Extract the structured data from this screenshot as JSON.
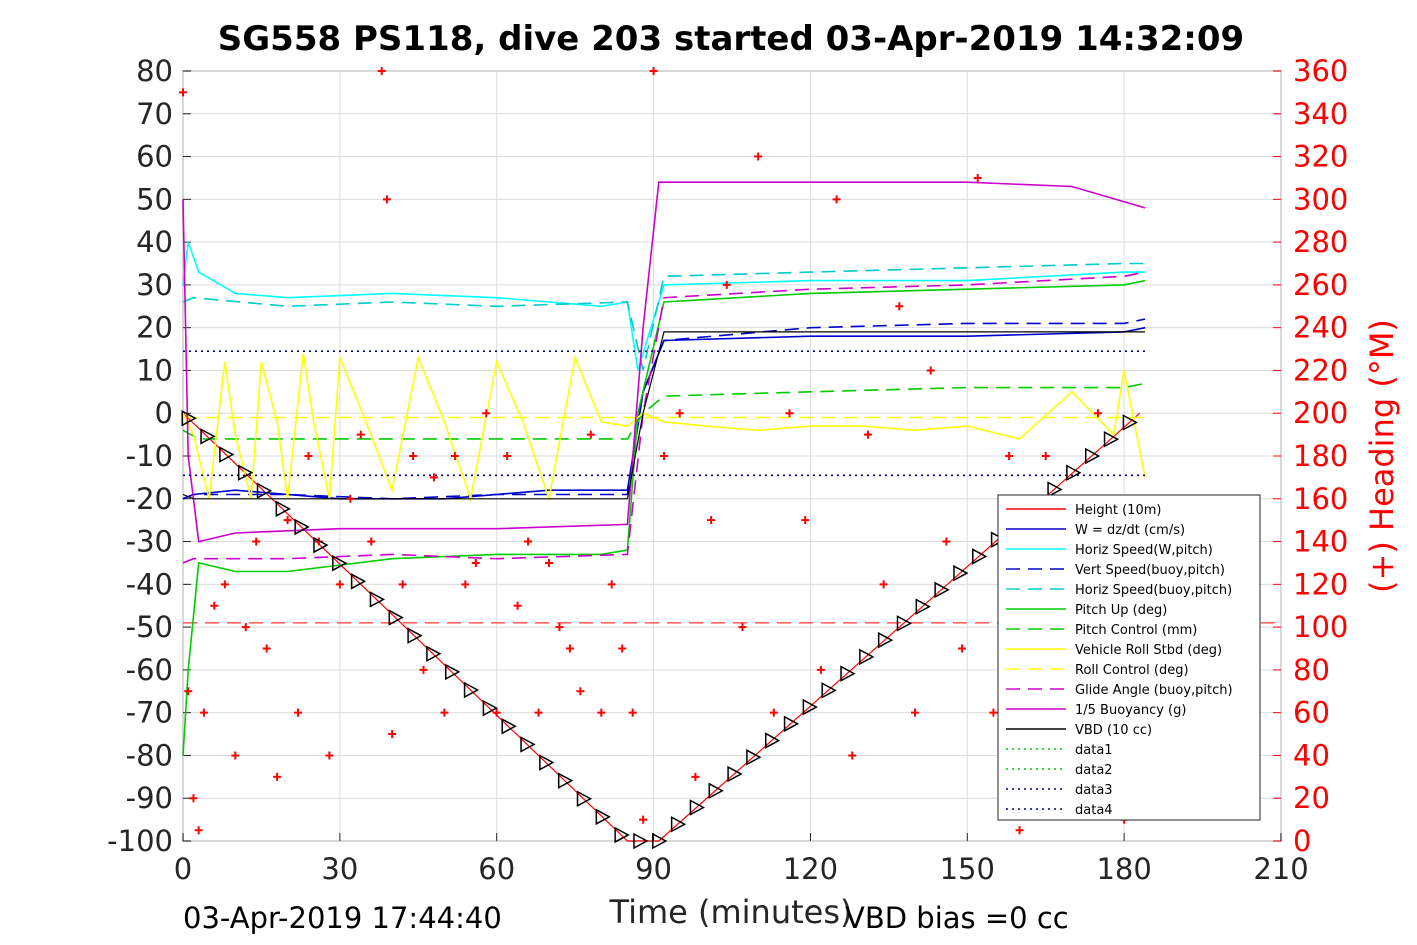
{
  "chart_data": {
    "type": "line",
    "title": "SG558 PS118, dive 203 started 03-Apr-2019 14:32:09",
    "xlabel": "Time (minutes)",
    "ylabel": "",
    "y2label": "(+) Heading (°M)",
    "xlim": [
      0,
      210
    ],
    "ylim": [
      -100,
      80
    ],
    "y2lim": [
      0,
      360
    ],
    "xticks": [
      "0",
      "30",
      "60",
      "90",
      "120",
      "150",
      "180",
      "210"
    ],
    "yticks": [
      "-100",
      "-90",
      "-80",
      "-70",
      "-60",
      "-50",
      "-40",
      "-30",
      "-20",
      "-10",
      "0",
      "10",
      "20",
      "30",
      "40",
      "50",
      "60",
      "70",
      "80"
    ],
    "y2ticks": [
      "0",
      "20",
      "40",
      "60",
      "80",
      "100",
      "120",
      "140",
      "160",
      "180",
      "200",
      "220",
      "240",
      "260",
      "280",
      "300",
      "320",
      "340",
      "360"
    ],
    "grid": true,
    "legend_position": "bottom-right",
    "footer_left": "03-Apr-2019 17:44:40",
    "footer_right": "VBD bias =0 cc",
    "colors": {
      "height": "#ff0000",
      "w": "#0000cc",
      "horiz_w": "#00ffff",
      "vert_buoy": "#0000cc",
      "horiz_buoy": "#00cccc",
      "pitch": "#00cc00",
      "pitch_ctl": "#00cc00",
      "roll": "#ffff00",
      "roll_ctl": "#ffff00",
      "glide": "#cc00cc",
      "buoyancy": "#cc00cc",
      "vbd": "#000000",
      "heading": "#ff0000"
    },
    "series": [
      {
        "key": "height",
        "name": "Height (10m)",
        "style": "solid",
        "x": [
          0,
          85,
          91,
          183
        ],
        "y": [
          0,
          -100,
          -100,
          0
        ]
      },
      {
        "key": "w",
        "name": "W = dz/dt (cm/s)",
        "style": "solid",
        "x": [
          0,
          2,
          10,
          30,
          50,
          70,
          85,
          88,
          92,
          120,
          150,
          180,
          184
        ],
        "y": [
          -20,
          -19,
          -18,
          -20,
          -20,
          -18,
          -18,
          5,
          17,
          18,
          18,
          19,
          20
        ]
      },
      {
        "key": "horiz_w",
        "name": "Horiz Speed(W,pitch)",
        "style": "solid",
        "x": [
          0,
          1,
          3,
          10,
          20,
          40,
          60,
          80,
          85,
          87,
          92,
          120,
          150,
          180,
          184
        ],
        "y": [
          30,
          40,
          33,
          28,
          27,
          28,
          27,
          25,
          26,
          10,
          30,
          31,
          31,
          33,
          33
        ]
      },
      {
        "key": "vert_buoy",
        "name": "Vert Speed(buoy,pitch)",
        "style": "dash",
        "x": [
          0,
          2,
          20,
          40,
          60,
          85,
          88,
          92,
          120,
          150,
          180,
          184
        ],
        "y": [
          -20,
          -19,
          -19,
          -20,
          -19,
          -19,
          5,
          17,
          20,
          21,
          21,
          22
        ]
      },
      {
        "key": "horiz_buoy",
        "name": "Horiz Speed(buoy,pitch)",
        "style": "dash",
        "x": [
          0,
          2,
          20,
          40,
          60,
          85,
          88,
          92,
          120,
          150,
          180,
          184
        ],
        "y": [
          26,
          27,
          25,
          26,
          25,
          26,
          10,
          32,
          33,
          34,
          35,
          35
        ]
      },
      {
        "key": "pitch",
        "name": "Pitch Up (deg)",
        "style": "solid",
        "x": [
          0,
          1,
          3,
          10,
          20,
          40,
          60,
          80,
          85,
          87,
          92,
          120,
          150,
          180,
          184
        ],
        "y": [
          -80,
          -60,
          -35,
          -37,
          -37,
          -34,
          -33,
          -33,
          -32,
          0,
          26,
          28,
          29,
          30,
          31
        ]
      },
      {
        "key": "pitch_ctl",
        "name": "Pitch Control (mm)",
        "style": "dash",
        "x": [
          0,
          3,
          30,
          60,
          85,
          88,
          92,
          120,
          150,
          180,
          184
        ],
        "y": [
          -4,
          -6,
          -6,
          -6,
          -6,
          0,
          4,
          5,
          6,
          6,
          7
        ]
      },
      {
        "key": "roll",
        "name": "Vehicle Roll Stbd (deg)",
        "style": "solid",
        "x": [
          0,
          2,
          5,
          8,
          10,
          13,
          15,
          18,
          20,
          23,
          25,
          28,
          30,
          35,
          40,
          45,
          50,
          55,
          60,
          65,
          70,
          75,
          80,
          85,
          88,
          92,
          100,
          110,
          120,
          130,
          140,
          150,
          160,
          170,
          178,
          180,
          184
        ],
        "y": [
          0,
          -5,
          -20,
          12,
          -5,
          -20,
          12,
          -2,
          -20,
          14,
          -2,
          -20,
          13,
          -2,
          -18,
          13,
          -2,
          -20,
          12,
          -2,
          -20,
          13,
          -2,
          -3,
          0,
          -2,
          -3,
          -4,
          -3,
          -3,
          -4,
          -3,
          -6,
          5,
          -5,
          10,
          -15
        ]
      },
      {
        "key": "roll_ctl",
        "name": "Roll Control (deg)",
        "style": "dash",
        "x": [
          0,
          184
        ],
        "y": [
          -1,
          -1
        ]
      },
      {
        "key": "glide",
        "name": "Glide Angle (buoy,pitch)",
        "style": "dash",
        "x": [
          0,
          2,
          20,
          40,
          60,
          85,
          88,
          92,
          120,
          150,
          180,
          184
        ],
        "y": [
          -35,
          -34,
          -34,
          -33,
          -34,
          -33,
          0,
          27,
          29,
          30,
          32,
          33
        ]
      },
      {
        "key": "buoyancy",
        "name": "1/5 Buoyancy (g)",
        "style": "solid",
        "x": [
          0,
          1,
          3,
          10,
          30,
          60,
          85,
          88,
          91,
          120,
          150,
          170,
          184
        ],
        "y": [
          50,
          -10,
          -30,
          -28,
          -27,
          -27,
          -26,
          20,
          54,
          54,
          54,
          53,
          48
        ]
      },
      {
        "key": "vbd",
        "name": "VBD (10 cc)",
        "style": "solid",
        "x": [
          0,
          2,
          30,
          60,
          85,
          88,
          92,
          120,
          150,
          184
        ],
        "y": [
          -19,
          -20,
          -20,
          -20,
          -20,
          0,
          19,
          19,
          19,
          19
        ]
      },
      {
        "key": "data1",
        "name": "data1",
        "style": "dotted",
        "x": [],
        "y": []
      },
      {
        "key": "data2",
        "name": "data2",
        "style": "dotted",
        "x": [],
        "y": []
      },
      {
        "key": "data3",
        "name": "data3",
        "style": "dotted",
        "x": [
          0,
          184
        ],
        "y": [
          14.5,
          14.5
        ]
      },
      {
        "key": "data4",
        "name": "data4",
        "style": "dotted",
        "x": [
          0,
          184
        ],
        "y": [
          -14.5,
          -14.5
        ]
      }
    ],
    "reference_lines": [
      {
        "style": "dash",
        "color": "#ff0000",
        "y": -49
      }
    ],
    "heading_points": {
      "name": "Heading",
      "axis": "right",
      "x": [
        0,
        1,
        2,
        3,
        4,
        6,
        8,
        10,
        12,
        14,
        16,
        18,
        20,
        22,
        24,
        26,
        28,
        30,
        32,
        34,
        36,
        38,
        39,
        40,
        42,
        44,
        46,
        48,
        50,
        52,
        54,
        56,
        58,
        60,
        62,
        64,
        66,
        68,
        70,
        72,
        74,
        76,
        78,
        80,
        82,
        84,
        86,
        88,
        90,
        92,
        95,
        98,
        101,
        104,
        107,
        110,
        113,
        116,
        119,
        122,
        125,
        128,
        131,
        134,
        137,
        140,
        143,
        146,
        149,
        152,
        155,
        158,
        160,
        165,
        170,
        175,
        180,
        183
      ],
      "y": [
        350,
        70,
        20,
        5,
        60,
        110,
        120,
        40,
        100,
        140,
        90,
        30,
        150,
        60,
        180,
        140,
        40,
        120,
        160,
        190,
        140,
        360,
        300,
        50,
        120,
        180,
        80,
        170,
        60,
        180,
        120,
        130,
        200,
        60,
        180,
        110,
        140,
        60,
        130,
        100,
        90,
        70,
        190,
        60,
        120,
        90,
        60,
        10,
        360,
        180,
        200,
        30,
        150,
        260,
        100,
        320,
        60,
        200,
        150,
        80,
        300,
        40,
        190,
        120,
        250,
        60,
        220,
        140,
        90,
        310,
        60,
        180,
        5,
        180,
        140,
        200,
        10,
        150
      ]
    }
  }
}
